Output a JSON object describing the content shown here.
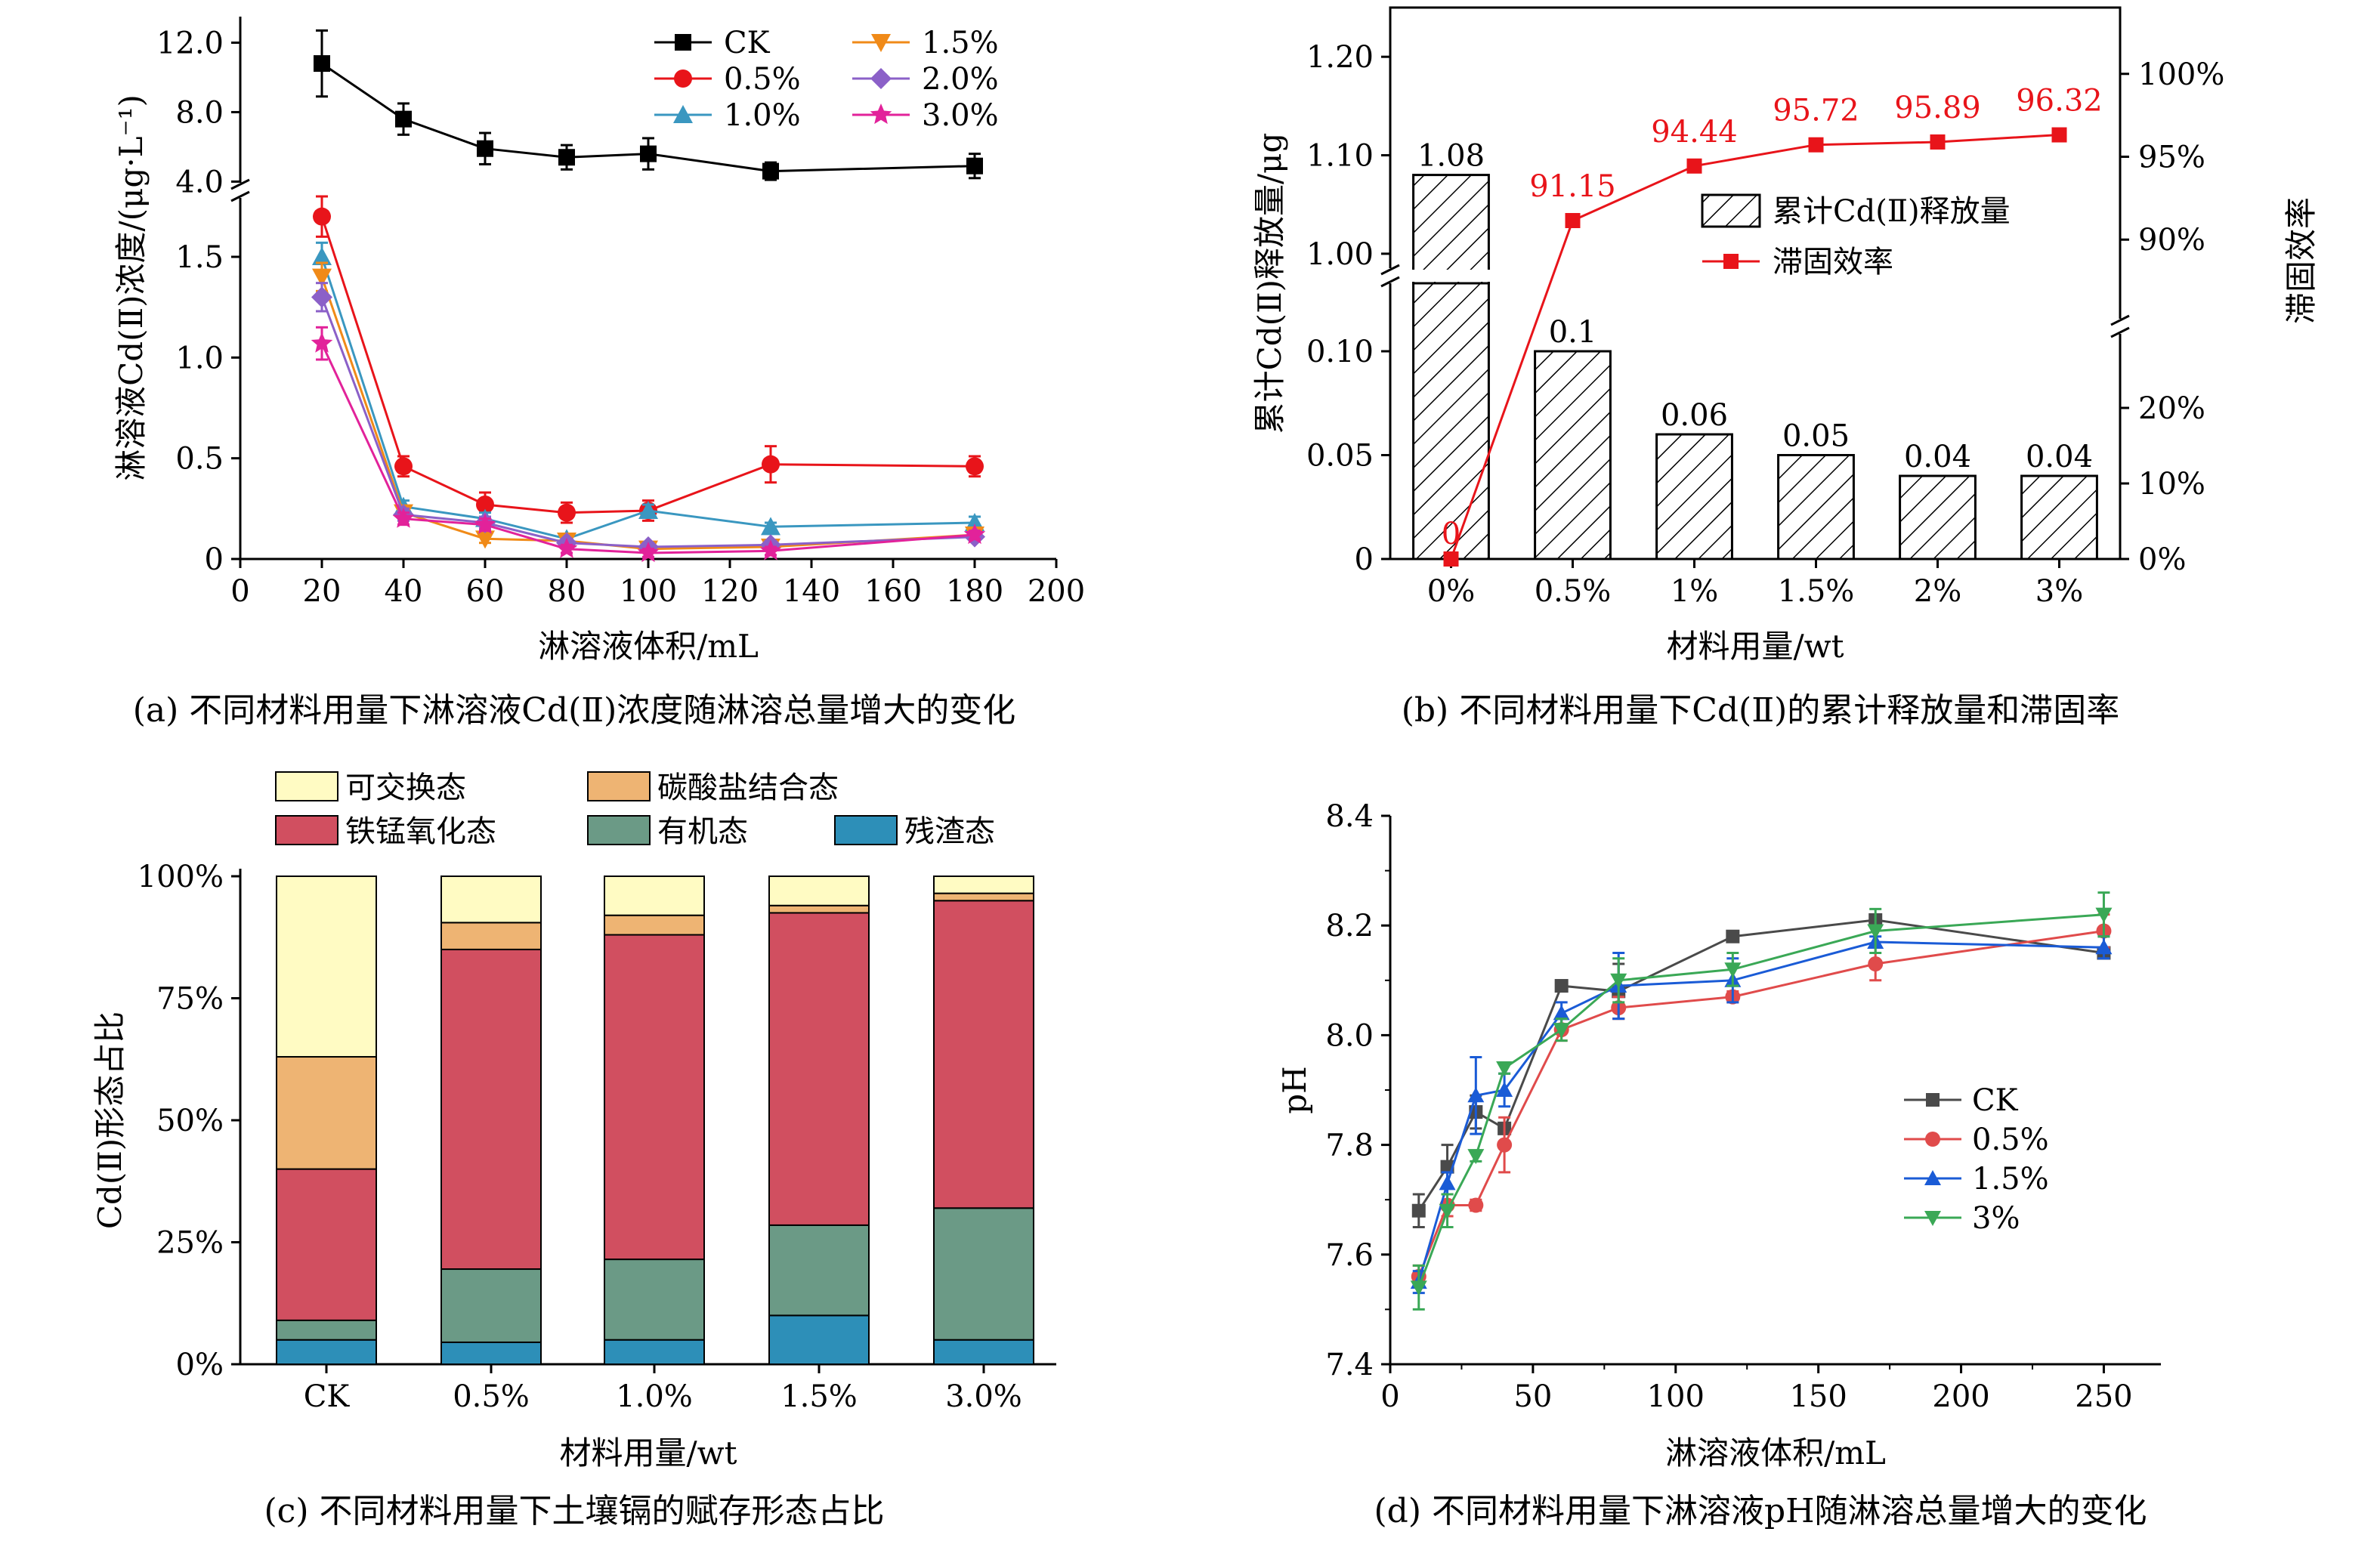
{
  "captions": {
    "a": "(a) 不同材料用量下淋溶液Cd(Ⅱ)浓度随淋溶总量增大的变化",
    "b": "(b) 不同材料用量下Cd(Ⅱ)的累计释放量和滞固率",
    "c": "(c) 不同材料用量下土壤镉的赋存形态占比",
    "d": "(d) 不同材料用量下淋溶液pH随淋溶总量增大的变化"
  },
  "chart_data": [
    {
      "id": "a",
      "type": "line",
      "xlabel": "淋溶液体积/mL",
      "ylabel": "淋溶液Cd(Ⅱ)浓度/(μg·L⁻¹)",
      "xlim": [
        0,
        200
      ],
      "x_ticks": [
        "0",
        "20",
        "40",
        "60",
        "80",
        "100",
        "120",
        "140",
        "160",
        "180",
        "200"
      ],
      "y_ticks_lower": [
        "0",
        "0.5",
        "1.0",
        "1.5"
      ],
      "y_ticks_upper": [
        "4.0",
        "8.0",
        "12.0"
      ],
      "y_break": "broken axis: lower 0–1.8, upper 3.8–13.5",
      "legend_position": "top-right",
      "x": [
        20,
        40,
        60,
        80,
        100,
        130,
        180
      ],
      "series": [
        {
          "name": "CK",
          "color": "#000000",
          "marker": "square",
          "values": [
            10.8,
            7.6,
            5.9,
            5.4,
            5.6,
            4.6,
            4.9
          ],
          "errors": [
            1.9,
            0.9,
            0.9,
            0.7,
            0.9,
            0.5,
            0.7
          ]
        },
        {
          "name": "0.5%",
          "color": "#e8141a",
          "marker": "circle",
          "values": [
            1.7,
            0.46,
            0.27,
            0.23,
            0.24,
            0.47,
            0.46
          ],
          "errors": [
            0.1,
            0.05,
            0.06,
            0.05,
            0.05,
            0.09,
            0.05
          ]
        },
        {
          "name": "1.0%",
          "color": "#3a97c0",
          "marker": "triangle-up",
          "values": [
            1.5,
            0.26,
            0.2,
            0.1,
            0.24,
            0.16,
            0.18
          ],
          "errors": [
            0.07,
            0.03,
            0.03,
            0.02,
            0.03,
            0.02,
            0.03
          ]
        },
        {
          "name": "1.5%",
          "color": "#f08a18",
          "marker": "triangle-down",
          "values": [
            1.4,
            0.23,
            0.1,
            0.09,
            0.05,
            0.06,
            0.12
          ],
          "errors": [
            0.07,
            0.03,
            0.02,
            0.02,
            0.02,
            0.02,
            0.02
          ]
        },
        {
          "name": "2.0%",
          "color": "#8b60c8",
          "marker": "diamond",
          "values": [
            1.3,
            0.22,
            0.18,
            0.08,
            0.06,
            0.07,
            0.11
          ],
          "errors": [
            0.07,
            0.03,
            0.03,
            0.02,
            0.02,
            0.02,
            0.02
          ]
        },
        {
          "name": "3.0%",
          "color": "#e2229a",
          "marker": "star",
          "values": [
            1.07,
            0.2,
            0.17,
            0.05,
            0.03,
            0.04,
            0.12
          ],
          "errors": [
            0.08,
            0.03,
            0.03,
            0.02,
            0.02,
            0.02,
            0.02
          ]
        }
      ]
    },
    {
      "id": "b",
      "type": "bar",
      "xlabel": "材料用量/wt",
      "ylabel": "累计Cd(Ⅱ)释放量/μg",
      "y2label": "滞固效率",
      "categories": [
        "0%",
        "0.5%",
        "1%",
        "1.5%",
        "2%",
        "3%"
      ],
      "y_ticks_lower": [
        "0",
        "0.05",
        "0.10"
      ],
      "y_ticks_upper": [
        "1.00",
        "1.10",
        "1.20"
      ],
      "y2_ticks_lower": [
        "0%",
        "10%",
        "20%"
      ],
      "y2_ticks_upper": [
        "90%",
        "95%",
        "100%"
      ],
      "legend_position": "center-right",
      "series": [
        {
          "name": "累计Cd(Ⅱ)释放量",
          "kind": "hatched-bar",
          "values": [
            1.08,
            0.1,
            0.06,
            0.05,
            0.04,
            0.04
          ],
          "labels": [
            "1.08",
            "0.1",
            "0.06",
            "0.05",
            "0.04",
            "0.04"
          ]
        },
        {
          "name": "滞固效率",
          "kind": "line",
          "color": "#e8141a",
          "axis": "right",
          "values": [
            0,
            91.15,
            94.44,
            95.72,
            95.89,
            96.32
          ],
          "labels": [
            "0",
            "91.15",
            "94.44",
            "95.72",
            "95.89",
            "96.32"
          ]
        }
      ]
    },
    {
      "id": "c",
      "type": "bar",
      "stacked": true,
      "xlabel": "材料用量/wt",
      "ylabel": "Cd(Ⅱ)形态占比",
      "categories": [
        "CK",
        "0.5%",
        "1.0%",
        "1.5%",
        "3.0%"
      ],
      "y_ticks": [
        "0%",
        "25%",
        "50%",
        "75%",
        "100%"
      ],
      "ylim": [
        0,
        100
      ],
      "legend_position": "top",
      "series": [
        {
          "name": "残渣态",
          "color": "#2d8fb8",
          "values": [
            5,
            4.5,
            5,
            10,
            5
          ]
        },
        {
          "name": "有机态",
          "color": "#6b9a86",
          "values": [
            4,
            15,
            16.5,
            18.5,
            27
          ]
        },
        {
          "name": "铁锰氧化态",
          "color": "#d14f60",
          "values": [
            31,
            65.5,
            66.5,
            64,
            63
          ]
        },
        {
          "name": "碳酸盐结合态",
          "color": "#eeb473",
          "values": [
            23,
            5.5,
            4,
            1.5,
            1.5
          ]
        },
        {
          "name": "可交换态",
          "color": "#fffbc3",
          "values": [
            37,
            9.5,
            8,
            6,
            3.5
          ]
        }
      ]
    },
    {
      "id": "d",
      "type": "line",
      "xlabel": "淋溶液体积/mL",
      "ylabel": "pH",
      "xlim": [
        0,
        270
      ],
      "ylim": [
        7.4,
        8.4
      ],
      "x_ticks": [
        "0",
        "50",
        "100",
        "150",
        "200",
        "250"
      ],
      "y_ticks": [
        "7.4",
        "7.6",
        "7.8",
        "8.0",
        "8.2",
        "8.4"
      ],
      "legend_position": "center-right",
      "x": [
        10,
        20,
        30,
        40,
        60,
        80,
        120,
        170,
        250
      ],
      "series": [
        {
          "name": "CK",
          "color": "#4a4a4a",
          "marker": "square",
          "values": [
            7.68,
            7.76,
            7.86,
            7.83,
            8.09,
            8.08,
            8.18,
            8.21,
            8.15
          ],
          "errors": [
            0.03,
            0.04,
            0.03,
            0.01,
            0.01,
            0.05,
            0.01,
            0.01,
            0.01
          ]
        },
        {
          "name": "0.5%",
          "color": "#e04b4b",
          "marker": "circle",
          "values": [
            7.56,
            7.69,
            7.69,
            7.8,
            8.01,
            8.05,
            8.07,
            8.13,
            8.19
          ],
          "errors": [
            0.02,
            0.02,
            0.01,
            0.05,
            0.02,
            0.02,
            0.01,
            0.03,
            0.03
          ]
        },
        {
          "name": "1.5%",
          "color": "#1a5bd6",
          "marker": "triangle-up",
          "values": [
            7.55,
            7.73,
            7.89,
            7.9,
            8.04,
            8.09,
            8.1,
            8.17,
            8.16
          ],
          "errors": [
            0.02,
            0.02,
            0.07,
            0.03,
            0.02,
            0.06,
            0.04,
            0.01,
            0.02
          ]
        },
        {
          "name": "3%",
          "color": "#3aa856",
          "marker": "triangle-down",
          "values": [
            7.54,
            7.68,
            7.78,
            7.94,
            8.01,
            8.1,
            8.12,
            8.19,
            8.22
          ],
          "errors": [
            0.04,
            0.03,
            0.01,
            0.01,
            0.02,
            0.04,
            0.03,
            0.04,
            0.04
          ]
        }
      ]
    }
  ]
}
